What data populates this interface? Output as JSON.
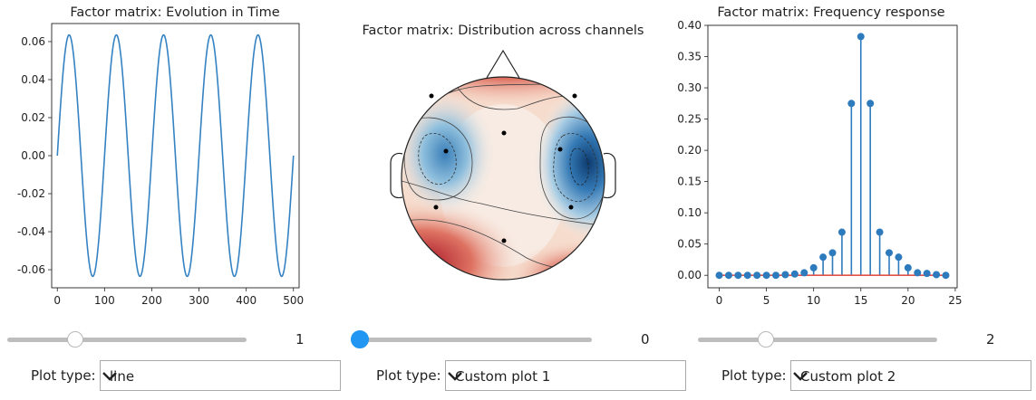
{
  "chart_data": [
    {
      "type": "line",
      "title": "Factor matrix: Evolution in Time",
      "xlim": [
        -12,
        512
      ],
      "ylim": [
        -0.0695,
        0.0695
      ],
      "xticks": [
        0,
        100,
        200,
        300,
        400,
        500
      ],
      "yticks": [
        -0.06,
        -0.04,
        -0.02,
        0.0,
        0.02,
        0.04,
        0.06
      ],
      "series": [
        {
          "amplitude": 0.0635,
          "period": 100,
          "x_start": 0,
          "x_end": 500,
          "color": "#3582c3"
        }
      ]
    },
    {
      "type": "heatmap",
      "title": "Factor matrix: Distribution across channels",
      "colormap": "RdBu_r"
    },
    {
      "type": "stem",
      "title": "Factor matrix: Frequency response",
      "xlim": [
        -1.2,
        25.2
      ],
      "ylim": [
        -0.02,
        0.4
      ],
      "xticks": [
        0,
        5,
        10,
        15,
        20,
        25
      ],
      "yticks": [
        0.0,
        0.05,
        0.1,
        0.15,
        0.2,
        0.25,
        0.3,
        0.35,
        0.4
      ],
      "x": [
        0,
        1,
        2,
        3,
        4,
        5,
        6,
        7,
        8,
        9,
        10,
        11,
        12,
        13,
        14,
        15,
        16,
        17,
        18,
        19,
        20,
        21,
        22,
        23,
        24
      ],
      "values": [
        0.0,
        0.0,
        0.0,
        0.0,
        0.0,
        0.0,
        0.0,
        0.001,
        0.002,
        0.004,
        0.012,
        0.029,
        0.036,
        0.069,
        0.275,
        0.382,
        0.275,
        0.069,
        0.036,
        0.029,
        0.012,
        0.004,
        0.003,
        0.001,
        0.0
      ],
      "marker_color": "#2d7bbd",
      "baseline_color": "#e0524a"
    }
  ],
  "controls": [
    {
      "slider_value": "1",
      "slider_fraction": 0.25,
      "active": false,
      "label": "Plot type:",
      "selected": "line"
    },
    {
      "slider_value": "0",
      "slider_fraction": 0.0,
      "active": true,
      "label": "Plot type:",
      "selected": "Custom plot 1"
    },
    {
      "slider_value": "2",
      "slider_fraction": 0.25,
      "active": false,
      "label": "Plot type:",
      "selected": "Custom plot 2"
    }
  ]
}
